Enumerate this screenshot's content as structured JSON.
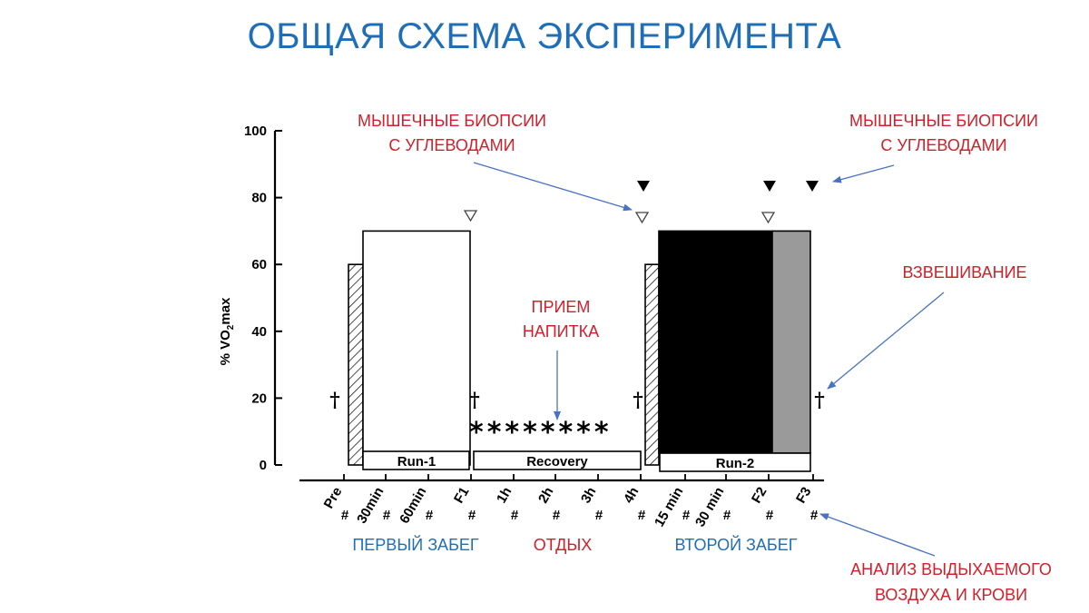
{
  "title": "ОБЩАЯ СХЕМА ЭКСПЕРИМЕНТА",
  "axis": {
    "ylabel_prefix": "% VO",
    "ylabel_sub": "2",
    "ylabel_suffix": "max",
    "yticks": [
      "0",
      "20",
      "40",
      "60",
      "80",
      "100"
    ],
    "ylim": [
      0,
      100
    ]
  },
  "timepoints": [
    "Pre",
    "30min",
    "60min",
    "F1",
    "1h",
    "2h",
    "3h",
    "4h",
    "15 min",
    "30 min",
    "F2",
    "F3"
  ],
  "hash_mark": "#",
  "dagger": "†",
  "asterisks": "********",
  "segments": {
    "run1": "Run-1",
    "recovery": "Recovery",
    "run2": "Run-2"
  },
  "bars": {
    "warmup_1": 60,
    "run_1": 70,
    "warmup_2": 60,
    "run_2_black": 70,
    "run_2_grey": 70
  },
  "notes": {
    "biopsy_left_line1": "МЫШЕЧНЫЕ БИОПСИИ",
    "biopsy_left_line2": "С УГЛЕВОДАМИ",
    "biopsy_right_line1": "МЫШЕЧНЫЕ БИОПСИИ",
    "biopsy_right_line2": "С УГЛЕВОДАМИ",
    "drink_line1": "ПРИЕМ",
    "drink_line2": "НАПИТКА",
    "weighing": "ВЗВЕШИВАНИЕ",
    "analysis_line1": "АНАЛИЗ ВЫДЫХАЕМОГО",
    "analysis_line2": "ВОЗДУХА И КРОВИ"
  },
  "phases": {
    "first_run": "ПЕРВЫЙ ЗАБЕГ",
    "rest": "ОТДЫХ",
    "second_run": "ВТОРОЙ ЗАБЕГ"
  },
  "colors": {
    "title": "#1f6fb8",
    "annotation_red": "#d0202a",
    "annotation_blue": "#1f6fb8",
    "arrow": "#4a72c4",
    "bar_black": "#000000",
    "bar_grey": "#9a9a9a"
  }
}
